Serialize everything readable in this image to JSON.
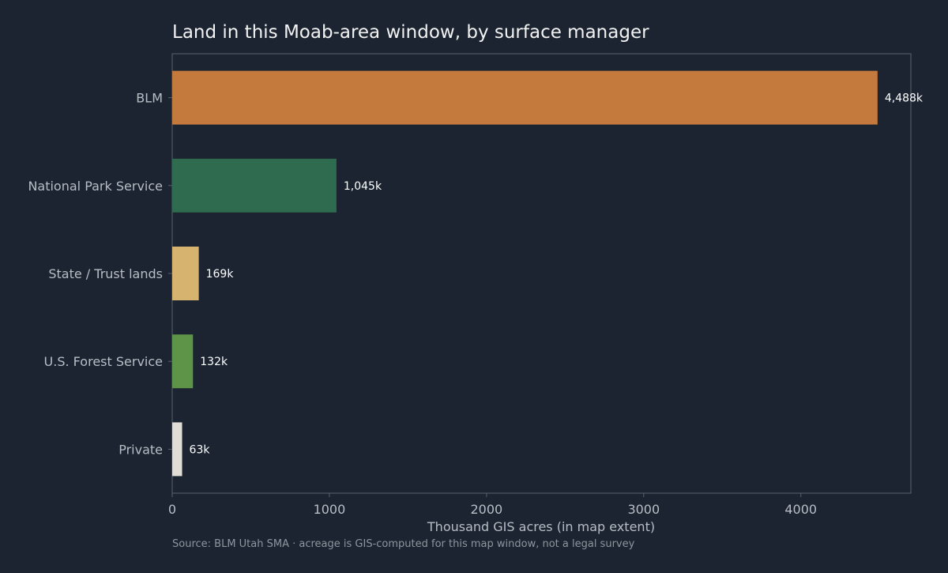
{
  "chart_data": {
    "type": "bar",
    "orientation": "horizontal",
    "title": "Land in this Moab-area window, by surface manager",
    "xlabel": "Thousand GIS acres (in map extent)",
    "ylabel": "",
    "categories": [
      "BLM",
      "National Park Service",
      "State / Trust lands",
      "U.S. Forest Service",
      "Private"
    ],
    "values": [
      4488,
      1045,
      169,
      132,
      63
    ],
    "value_labels": [
      "4,488k",
      "1,045k",
      "169k",
      "132k",
      "63k"
    ],
    "colors": [
      "#c47a3c",
      "#2e6b4f",
      "#d6b36e",
      "#5e9448",
      "#e0ddd6"
    ],
    "xlim": [
      0,
      4700
    ],
    "xticks": [
      0,
      1000,
      2000,
      3000,
      4000
    ],
    "xtick_labels": [
      "0",
      "1000",
      "2000",
      "3000",
      "4000"
    ],
    "grid": false,
    "legend": "none",
    "source": "Source: BLM Utah SMA · acreage is GIS-computed for this map window, not a legal survey"
  },
  "theme": {
    "background": "#1b2430",
    "frame": "#5a626c",
    "text": "#f2f2f2",
    "muted_text": "#b8bec6"
  }
}
